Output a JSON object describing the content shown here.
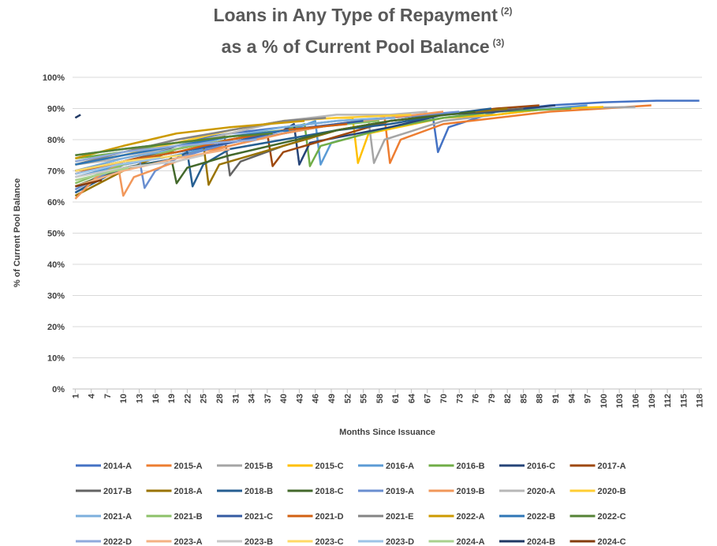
{
  "chart_data": {
    "type": "line",
    "title": [
      "Loans in Any Type of Repayment",
      "as a % of Current Pool Balance"
    ],
    "title_notes": [
      "(2)",
      "(3)"
    ],
    "x_label": "Months Since Issuance",
    "y_label": "% of Current Pool Balance",
    "xlim": [
      0.5,
      118.5
    ],
    "xticks": [
      1,
      4,
      7,
      10,
      13,
      16,
      19,
      22,
      25,
      28,
      31,
      34,
      37,
      40,
      43,
      46,
      49,
      52,
      55,
      58,
      61,
      64,
      67,
      70,
      73,
      76,
      79,
      82,
      85,
      88,
      91,
      94,
      97,
      100,
      103,
      106,
      109,
      112,
      115,
      118
    ],
    "ylim": [
      0,
      100
    ],
    "yticks": [
      {
        "value": 0,
        "label": "0%"
      },
      {
        "value": 10,
        "label": "10%"
      },
      {
        "value": 20,
        "label": "20%"
      },
      {
        "value": 30,
        "label": "30%"
      },
      {
        "value": 40,
        "label": "40%"
      },
      {
        "value": 50,
        "label": "50%"
      },
      {
        "value": 60,
        "label": "60%"
      },
      {
        "value": 70,
        "label": "70%"
      },
      {
        "value": 80,
        "label": "80%"
      },
      {
        "value": 90,
        "label": "90%"
      },
      {
        "value": 100,
        "label": "100%"
      }
    ],
    "grid": true,
    "legend": "bottom",
    "series": [
      {
        "name": "2014-A",
        "color": "#4472c4",
        "x": [
          1,
          10,
          20,
          30,
          40,
          50,
          60,
          68,
          69,
          71,
          80,
          90,
          100,
          110,
          118
        ],
        "values": [
          75,
          77,
          79,
          82,
          84,
          86,
          87,
          88,
          76,
          84,
          89,
          91,
          92,
          92.5,
          92.5
        ]
      },
      {
        "name": "2015-A",
        "color": "#ed7d31",
        "x": [
          1,
          10,
          20,
          30,
          40,
          50,
          59,
          60,
          62,
          70,
          80,
          90,
          100,
          109
        ],
        "values": [
          70,
          72,
          75,
          78,
          82,
          85,
          87,
          72.5,
          80,
          85,
          87,
          89,
          90,
          91
        ]
      },
      {
        "name": "2015-B",
        "color": "#a5a5a5",
        "x": [
          1,
          10,
          20,
          30,
          40,
          50,
          56,
          57,
          59,
          70,
          80,
          90,
          106
        ],
        "values": [
          64,
          73,
          76,
          79,
          82,
          85,
          86,
          72.5,
          80,
          86,
          88,
          90,
          90.5
        ]
      },
      {
        "name": "2015-C",
        "color": "#ffc000",
        "x": [
          1,
          10,
          20,
          30,
          40,
          50,
          53,
          54,
          56,
          70,
          80,
          90,
          100
        ],
        "values": [
          73,
          76,
          79,
          83,
          86,
          87,
          87,
          72.5,
          82,
          87,
          88,
          90,
          90.5
        ]
      },
      {
        "name": "2016-A",
        "color": "#5b9bd5",
        "x": [
          1,
          10,
          20,
          30,
          40,
          46,
          47,
          49,
          60,
          70,
          80,
          90,
          97
        ],
        "values": [
          68,
          72,
          75,
          79,
          82,
          86,
          72,
          79,
          84,
          87,
          89,
          90,
          91
        ]
      },
      {
        "name": "2016-B",
        "color": "#70ad47",
        "x": [
          1,
          10,
          20,
          30,
          40,
          44,
          45,
          47,
          60,
          70,
          80,
          94
        ],
        "values": [
          74,
          76,
          79,
          81,
          83,
          85,
          71.5,
          78,
          84,
          87,
          89,
          90
        ]
      },
      {
        "name": "2016-C",
        "color": "#264478",
        "x": [
          1,
          10,
          20,
          30,
          40,
          42,
          43,
          45,
          60,
          70,
          80,
          91
        ],
        "values": [
          70,
          73,
          76,
          79,
          83,
          85,
          72,
          79,
          84,
          88,
          89,
          91
        ]
      },
      {
        "name": "2017-A",
        "color": "#9e480e",
        "x": [
          1,
          10,
          20,
          30,
          37,
          38,
          40,
          50,
          60,
          70,
          80,
          88
        ],
        "values": [
          69,
          73,
          77,
          80,
          82,
          71.5,
          76,
          81,
          86,
          88,
          90,
          91
        ]
      },
      {
        "name": "2017-B",
        "color": "#636363",
        "x": [
          1,
          10,
          20,
          29,
          30,
          32,
          40,
          50,
          60,
          70,
          85
        ],
        "values": [
          63,
          72,
          78,
          81,
          68.5,
          73,
          78,
          83,
          86,
          88,
          90
        ]
      },
      {
        "name": "2018-A",
        "color": "#997300",
        "x": [
          1,
          10,
          20,
          25,
          26,
          28,
          40,
          50,
          60,
          70,
          82
        ],
        "values": [
          62,
          70,
          77,
          79,
          65.5,
          72,
          78,
          83,
          86,
          88,
          90
        ]
      },
      {
        "name": "2018-B",
        "color": "#255e91",
        "x": [
          1,
          10,
          20,
          22,
          23,
          25,
          30,
          40,
          50,
          60,
          70,
          79
        ],
        "values": [
          63,
          71,
          74,
          76,
          65,
          72,
          77,
          80,
          83,
          85,
          88,
          90
        ]
      },
      {
        "name": "2018-C",
        "color": "#43682b",
        "x": [
          1,
          10,
          18,
          19,
          20,
          22,
          30,
          40,
          50,
          60,
          76
        ],
        "values": [
          65,
          71,
          73,
          74,
          66,
          71,
          75,
          79,
          83,
          86,
          89
        ]
      },
      {
        "name": "2019-A",
        "color": "#698ed0",
        "x": [
          1,
          10,
          13,
          14,
          16,
          20,
          30,
          40,
          50,
          60,
          73
        ],
        "values": [
          64,
          72,
          74,
          64.5,
          70,
          74,
          79,
          82,
          85,
          87,
          89
        ]
      },
      {
        "name": "2019-B",
        "color": "#f1975a",
        "x": [
          1,
          5,
          9,
          10,
          12,
          20,
          30,
          40,
          50,
          60,
          70
        ],
        "values": [
          61,
          68,
          72,
          62,
          68,
          73,
          78,
          82,
          85,
          87,
          89
        ]
      },
      {
        "name": "2020-A",
        "color": "#b7b7b7",
        "x": [
          1,
          10,
          20,
          30,
          40,
          50,
          60,
          67
        ],
        "values": [
          72,
          74,
          78,
          82,
          86,
          88,
          88,
          89
        ]
      },
      {
        "name": "2020-B",
        "color": "#ffcd33",
        "x": [
          1,
          10,
          20,
          30,
          40,
          50,
          64
        ],
        "values": [
          72,
          75,
          79,
          83,
          86,
          87,
          88
        ]
      },
      {
        "name": "2021-A",
        "color": "#7cafdd",
        "x": [
          1,
          10,
          20,
          30,
          40,
          50,
          61
        ],
        "values": [
          70,
          74,
          77,
          81,
          84,
          86,
          87
        ]
      },
      {
        "name": "2021-B",
        "color": "#8cc168",
        "x": [
          1,
          10,
          20,
          30,
          40,
          58
        ],
        "values": [
          66,
          72,
          77,
          80,
          83,
          86
        ]
      },
      {
        "name": "2021-C",
        "color": "#335aa1",
        "x": [
          1,
          10,
          20,
          30,
          40,
          55
        ],
        "values": [
          70,
          73,
          76,
          79,
          83,
          86
        ]
      },
      {
        "name": "2021-D",
        "color": "#d26012",
        "x": [
          1,
          10,
          20,
          30,
          40,
          52
        ],
        "values": [
          69,
          73,
          76,
          80,
          83,
          85
        ]
      },
      {
        "name": "2021-E",
        "color": "#848484",
        "x": [
          1,
          10,
          20,
          30,
          40,
          48
        ],
        "values": [
          72,
          76,
          80,
          83,
          86,
          87
        ]
      },
      {
        "name": "2022-A",
        "color": "#cc9a00",
        "x": [
          1,
          10,
          20,
          30,
          44
        ],
        "values": [
          74,
          78,
          82,
          84,
          86
        ]
      },
      {
        "name": "2022-B",
        "color": "#2e75b6",
        "x": [
          1,
          10,
          20,
          30,
          41
        ],
        "values": [
          72,
          75,
          78,
          81,
          83
        ]
      },
      {
        "name": "2022-C",
        "color": "#548235",
        "x": [
          1,
          10,
          20,
          30,
          38
        ],
        "values": [
          75,
          77,
          79,
          81,
          82
        ]
      },
      {
        "name": "2022-D",
        "color": "#8faadc",
        "x": [
          1,
          10,
          20,
          35
        ],
        "values": [
          73,
          76,
          78,
          80
        ]
      },
      {
        "name": "2023-A",
        "color": "#f4b183",
        "x": [
          1,
          10,
          20,
          30
        ],
        "values": [
          65,
          70,
          74,
          77
        ]
      },
      {
        "name": "2023-B",
        "color": "#c9c9c9",
        "x": [
          1,
          10,
          20,
          25
        ],
        "values": [
          68,
          71,
          73,
          75
        ]
      },
      {
        "name": "2023-C",
        "color": "#ffd966",
        "x": [
          1,
          10,
          21
        ],
        "values": [
          70,
          73,
          75
        ]
      },
      {
        "name": "2023-D",
        "color": "#9dc3e6",
        "x": [
          1,
          9,
          17
        ],
        "values": [
          69,
          72,
          74
        ]
      },
      {
        "name": "2024-A",
        "color": "#a9d18e",
        "x": [
          1,
          6,
          11
        ],
        "values": [
          67,
          69,
          71
        ]
      },
      {
        "name": "2024-B",
        "color": "#203864",
        "x": [
          1,
          2
        ],
        "values": [
          87,
          88
        ]
      },
      {
        "name": "2024-C",
        "color": "#843c0c",
        "x": [
          1,
          6
        ],
        "values": [
          65,
          67
        ]
      }
    ]
  }
}
